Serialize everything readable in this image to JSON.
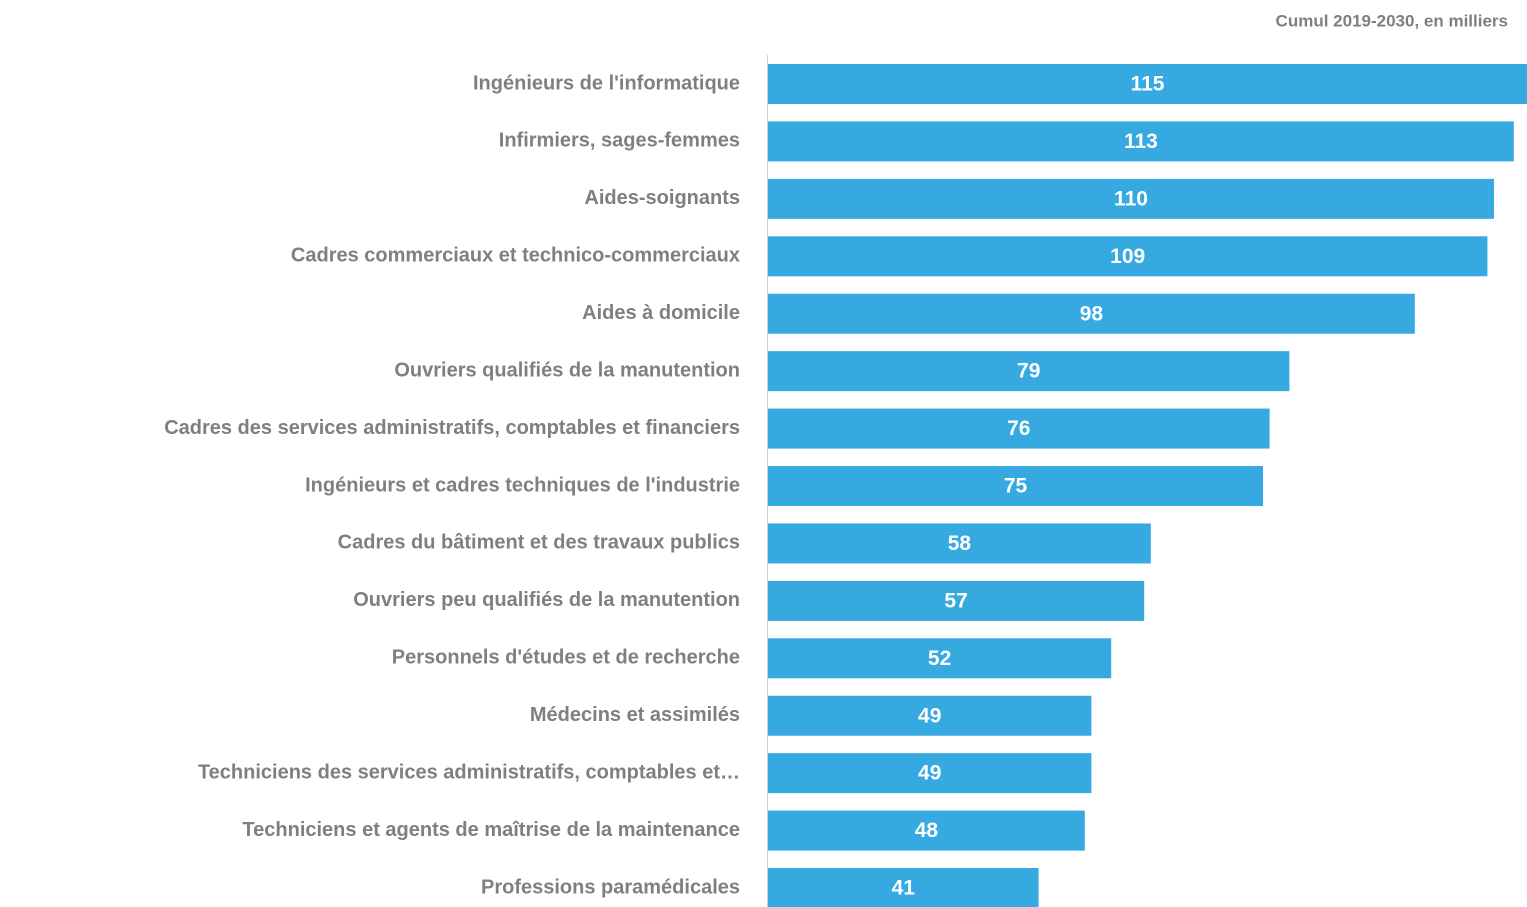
{
  "chart_data": {
    "type": "hbar",
    "annotation": "Cumul 2019-2030, en milliers",
    "categories": [
      "Ingénieurs de l'informatique",
      "Infirmiers, sages-femmes",
      "Aides-soignants",
      "Cadres commerciaux et technico-commerciaux",
      "Aides à domicile",
      "Ouvriers qualifiés de la manutention",
      "Cadres des services administratifs, comptables et financiers",
      "Ingénieurs et cadres techniques de l'industrie",
      "Cadres du bâtiment et des travaux publics",
      "Ouvriers peu qualifiés de la manutention",
      "Personnels d'études et de recherche",
      "Médecins et assimilés",
      "Techniciens des services administratifs, comptables et…",
      "Techniciens et agents de maîtrise de la maintenance",
      "Professions paramédicales"
    ],
    "values": [
      115,
      113,
      110,
      109,
      98,
      79,
      76,
      75,
      58,
      57,
      52,
      49,
      49,
      48,
      41
    ],
    "color": "#36a9e1"
  }
}
